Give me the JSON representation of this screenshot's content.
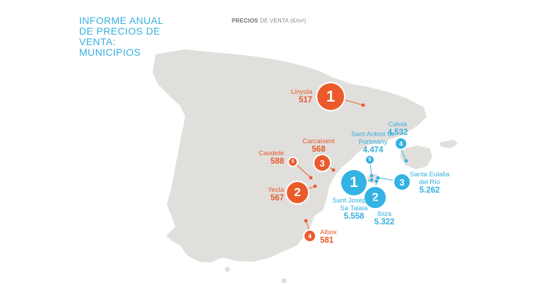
{
  "title": "INFORME ANUAL DE PRECIOS DE VENTA: MUNICIPIOS",
  "subtitle": {
    "bold": "PRECIOS",
    "rest": " DE VENTA (€/m²)"
  },
  "colors": {
    "mainland": "#ea5a2b",
    "islands": "#34b2e4",
    "land": "#e1dfdc"
  },
  "orange_group": [
    {
      "rank": "1",
      "name": "Linyola",
      "value": "517"
    },
    {
      "rank": "2",
      "name": "Yecla",
      "value": "567"
    },
    {
      "rank": "3",
      "name": "Carcaixent",
      "value": "568"
    },
    {
      "rank": "4",
      "name": "Albox",
      "value": "581"
    },
    {
      "rank": "5",
      "name": "Caudete",
      "value": "588"
    }
  ],
  "blue_group": [
    {
      "rank": "1",
      "name": "Sant Josep de Sa Talaia",
      "value": "5.558"
    },
    {
      "rank": "2",
      "name": "Ibiza",
      "value": "5.322"
    },
    {
      "rank": "3",
      "name": "Santa Eulalia del Río",
      "value": "5.262"
    },
    {
      "rank": "4",
      "name": "Calvià",
      "value": "4.532"
    },
    {
      "rank": "5",
      "name": "Sant Antoni de Portmany",
      "value": "4.474"
    }
  ]
}
